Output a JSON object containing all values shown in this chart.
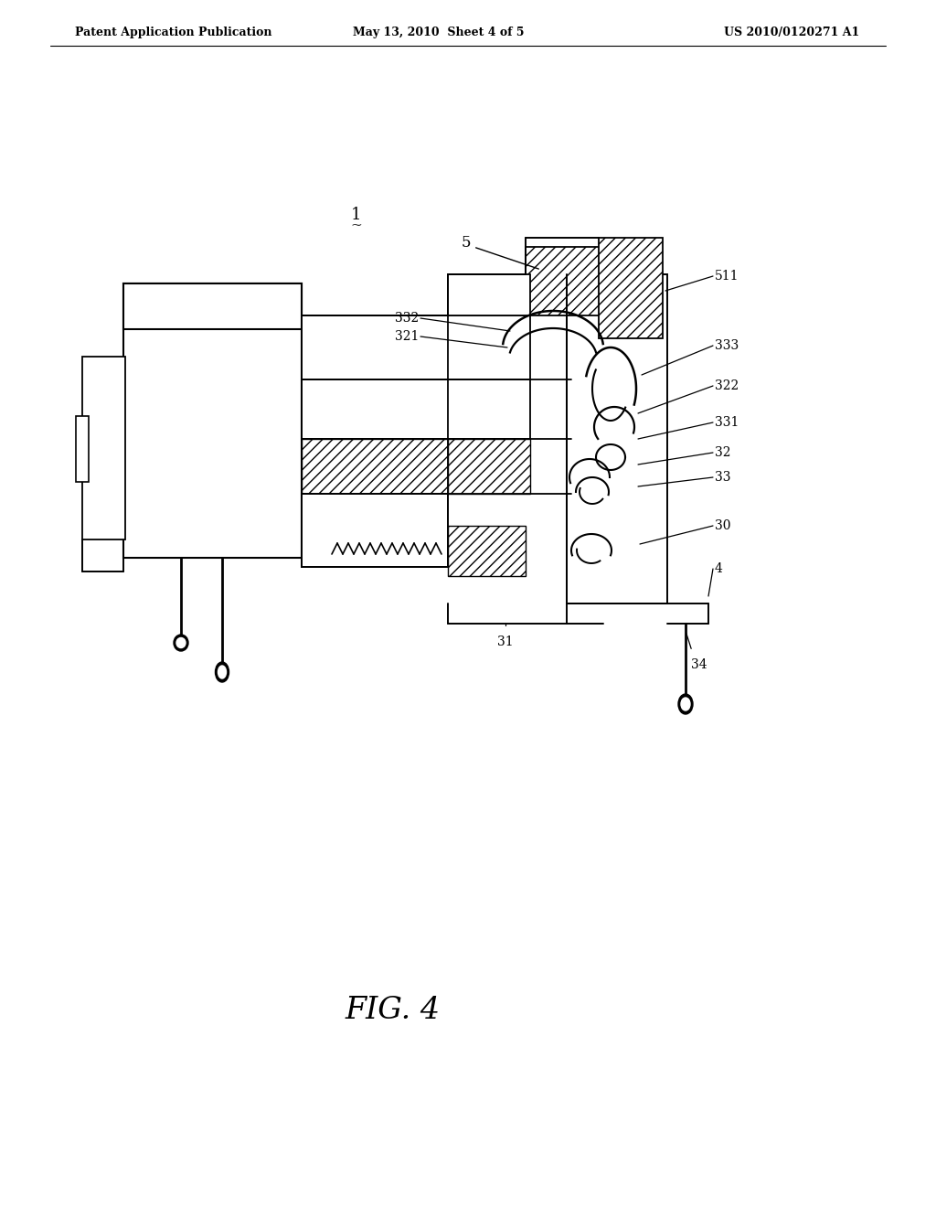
{
  "bg_color": "#ffffff",
  "lc": "#000000",
  "header_left": "Patent Application Publication",
  "header_center": "May 13, 2010  Sheet 4 of 5",
  "header_right": "US 2010/0120271 A1",
  "fig_label": "FIG. 4",
  "label_1": "1",
  "label_5": "5",
  "label_511": "511",
  "label_332": "332",
  "label_321": "321",
  "label_333": "333",
  "label_322": "322",
  "label_331": "331",
  "label_32": "32",
  "label_33": "33",
  "label_30": "30",
  "label_4": "4",
  "label_31": "31",
  "label_34": "34"
}
